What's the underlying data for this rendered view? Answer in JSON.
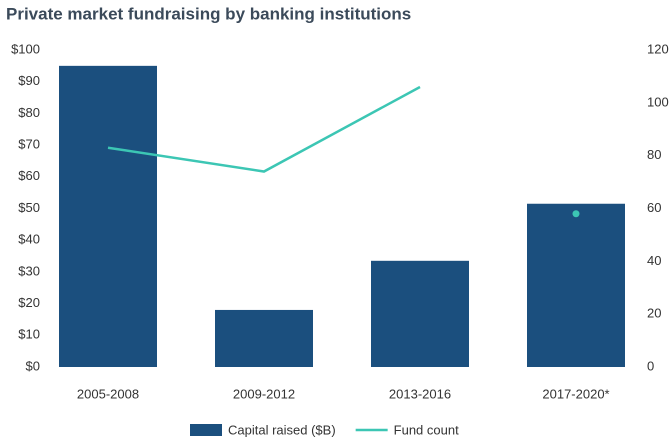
{
  "chart_data": {
    "type": "bar",
    "title": "Private market fundraising by banking institutions",
    "categories": [
      "2005-2008",
      "2009-2012",
      "2013-2016",
      "2017-2020*"
    ],
    "series": [
      {
        "name": "Capital raised ($B)",
        "type": "bar",
        "color": "#1b4f7e",
        "values": [
          95,
          18,
          33.5,
          51.5
        ]
      },
      {
        "name": "Fund count",
        "type": "line",
        "axis": "y2",
        "color": "#3cc6b4",
        "values": [
          83,
          74,
          106,
          58
        ],
        "styles": [
          "line",
          "line",
          "line",
          "dot"
        ]
      }
    ],
    "ylim": [
      0,
      100
    ],
    "yticks": [
      {
        "value": 0,
        "label": "$0"
      },
      {
        "value": 10,
        "label": "$10"
      },
      {
        "value": 20,
        "label": "$20"
      },
      {
        "value": 30,
        "label": "$30"
      },
      {
        "value": 40,
        "label": "$40"
      },
      {
        "value": 50,
        "label": "$50"
      },
      {
        "value": 60,
        "label": "$60"
      },
      {
        "value": 70,
        "label": "$70"
      },
      {
        "value": 80,
        "label": "$80"
      },
      {
        "value": 90,
        "label": "$90"
      },
      {
        "value": 100,
        "label": "$100"
      }
    ],
    "y2lim": [
      0,
      120
    ],
    "y2ticks": [
      0,
      20,
      40,
      60,
      80,
      100,
      120
    ],
    "grid": false,
    "legend": "bottom"
  }
}
